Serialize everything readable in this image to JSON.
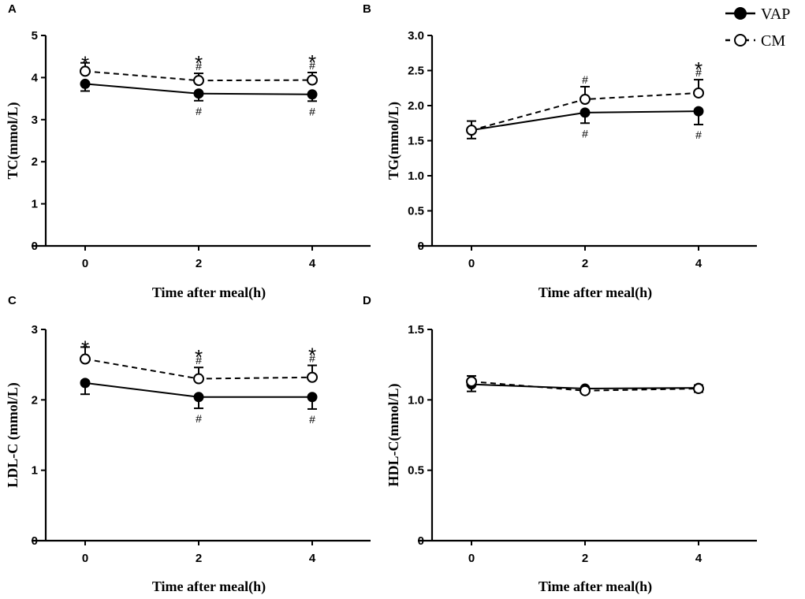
{
  "legend": {
    "series": [
      {
        "name": "VAP",
        "marker": "filled-circle",
        "line": "solid"
      },
      {
        "name": "CM",
        "marker": "open-circle",
        "line": "dashed"
      }
    ]
  },
  "chart_data": [
    {
      "panel": "A",
      "type": "line",
      "xlabel": "Time after meal(h)",
      "ylabel": "TC(mmol/L)",
      "x": [
        0,
        2,
        4
      ],
      "ylim": [
        0,
        5
      ],
      "yticks": [
        "0",
        "1",
        "2",
        "3",
        "4",
        "5"
      ],
      "series": [
        {
          "name": "VAP",
          "values": [
            3.85,
            3.62,
            3.6
          ],
          "errors": [
            0.17,
            0.17,
            0.16
          ]
        },
        {
          "name": "CM",
          "values": [
            4.15,
            3.93,
            3.94
          ],
          "errors": [
            0.2,
            0.17,
            0.18
          ]
        }
      ],
      "annotations": [
        {
          "x": 0,
          "above": [
            "*"
          ],
          "below": []
        },
        {
          "x": 2,
          "above": [
            "*",
            "#"
          ],
          "below": [
            "#"
          ]
        },
        {
          "x": 4,
          "above": [
            "*",
            "#"
          ],
          "below": [
            "#"
          ]
        }
      ]
    },
    {
      "panel": "B",
      "type": "line",
      "xlabel": "Time after meal(h)",
      "ylabel": "TG(mmol/L)",
      "x": [
        0,
        2,
        4
      ],
      "ylim": [
        0,
        3
      ],
      "yticks": [
        "0",
        "0.5",
        "1.0",
        "1.5",
        "2.0",
        "2.5",
        "3.0"
      ],
      "series": [
        {
          "name": "VAP",
          "values": [
            1.65,
            1.9,
            1.92
          ],
          "errors": [
            0.12,
            0.15,
            0.19
          ]
        },
        {
          "name": "CM",
          "values": [
            1.65,
            2.09,
            2.18
          ],
          "errors": [
            0.13,
            0.18,
            0.19
          ]
        }
      ],
      "annotations": [
        {
          "x": 0,
          "above": [],
          "below": []
        },
        {
          "x": 2,
          "above": [
            "#"
          ],
          "below": [
            "#"
          ]
        },
        {
          "x": 4,
          "above": [
            "*",
            "#"
          ],
          "below": [
            "#"
          ]
        }
      ]
    },
    {
      "panel": "C",
      "type": "line",
      "xlabel": "Time after meal(h)",
      "ylabel": "LDL-C (mmol/L)",
      "x": [
        0,
        2,
        4
      ],
      "ylim": [
        0,
        3
      ],
      "yticks": [
        "0",
        "1",
        "2",
        "3"
      ],
      "series": [
        {
          "name": "VAP",
          "values": [
            2.24,
            2.04,
            2.04
          ],
          "errors": [
            0.16,
            0.16,
            0.17
          ]
        },
        {
          "name": "CM",
          "values": [
            2.58,
            2.3,
            2.32
          ],
          "errors": [
            0.17,
            0.16,
            0.17
          ]
        }
      ],
      "annotations": [
        {
          "x": 0,
          "above": [
            "*"
          ],
          "below": []
        },
        {
          "x": 2,
          "above": [
            "*",
            "#"
          ],
          "below": [
            "#"
          ]
        },
        {
          "x": 4,
          "above": [
            "*",
            "#"
          ],
          "below": [
            "#"
          ]
        }
      ]
    },
    {
      "panel": "D",
      "type": "line",
      "xlabel": "Time after meal(h)",
      "ylabel": "HDL-C(mmol/L)",
      "x": [
        0,
        2,
        4
      ],
      "ylim": [
        0,
        1.5
      ],
      "yticks": [
        "0",
        "0.5",
        "1.0",
        "1.5"
      ],
      "series": [
        {
          "name": "VAP",
          "values": [
            1.11,
            1.08,
            1.085
          ],
          "errors": [
            0.05,
            0.02,
            0.03
          ]
        },
        {
          "name": "CM",
          "values": [
            1.13,
            1.065,
            1.08
          ],
          "errors": [
            0.04,
            0.02,
            0.025
          ]
        }
      ],
      "annotations": [
        {
          "x": 0,
          "above": [],
          "below": []
        },
        {
          "x": 2,
          "above": [],
          "below": []
        },
        {
          "x": 4,
          "above": [],
          "below": []
        }
      ]
    }
  ]
}
